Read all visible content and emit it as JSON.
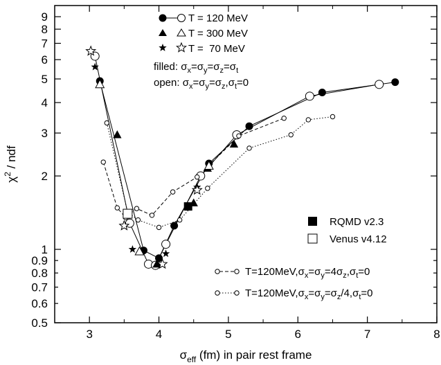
{
  "chart_data": {
    "type": "scatter",
    "xlabel": "σ_eff (fm) in pair rest frame",
    "xlabel_main": "σ",
    "xlabel_sub": "eff",
    "xlabel_rest": " (fm) in pair rest frame",
    "ylabel": "χ² / ndf",
    "ylabel_main": "χ",
    "ylabel_sup": "2",
    "ylabel_rest": " / ndf",
    "xlim": [
      2.5,
      8
    ],
    "ylim": [
      0.5,
      10
    ],
    "y_scale": "log",
    "grid": false,
    "x_ticks": [
      "3",
      "4",
      "5",
      "6",
      "7",
      "8"
    ],
    "y_ticks": [
      "0.5",
      "0.6",
      "0.7",
      "0.8",
      "0.9",
      "1",
      "2",
      "3",
      "4",
      "5",
      "6",
      "7",
      "8",
      "9"
    ],
    "legend_top": {
      "entries": [
        "T = 120 MeV",
        "T = 300 MeV",
        "T =  70 MeV"
      ],
      "filled_prefix": "filled:",
      "filled_formula": "σx=σy=σz=σt",
      "open_prefix": "open:",
      "open_formula": "σx=σy=σz,σt=0"
    },
    "legend_right": {
      "rqmd": "RQMD v2.3",
      "venus": "Venus v4.12"
    },
    "legend_bottom": {
      "dashed": "T=120MeV,σx=σy=4σz,σt=0",
      "dotted": "T=120MeV,σx=σy=σz/4,σt=0"
    },
    "series": [
      {
        "name": "T = 120 MeV, filled",
        "marker": "filled-circle",
        "line": "solid",
        "points": [
          [
            3.15,
            4.9
          ],
          [
            3.78,
            0.99
          ],
          [
            4.0,
            0.92
          ],
          [
            4.22,
            1.25
          ],
          [
            4.72,
            2.25
          ],
          [
            5.3,
            3.2
          ],
          [
            6.35,
            4.4
          ],
          [
            7.4,
            4.85
          ]
        ]
      },
      {
        "name": "T = 120 MeV, open",
        "marker": "open-circle",
        "line": "solid",
        "points": [
          [
            3.08,
            6.2
          ],
          [
            3.58,
            1.28
          ],
          [
            3.85,
            0.87
          ],
          [
            3.95,
            0.86
          ],
          [
            4.1,
            1.05
          ],
          [
            4.6,
            2.0
          ],
          [
            5.12,
            2.95
          ],
          [
            6.17,
            4.25
          ],
          [
            7.17,
            4.75
          ]
        ]
      },
      {
        "name": "T = 300 MeV, filled",
        "marker": "filled-triangle",
        "line": "none",
        "points": [
          [
            3.4,
            2.95
          ],
          [
            3.97,
            0.87
          ],
          [
            4.5,
            1.55
          ],
          [
            4.7,
            2.15
          ],
          [
            5.08,
            2.7
          ]
        ]
      },
      {
        "name": "T = 300 MeV, open",
        "marker": "open-triangle",
        "line": "none",
        "points": [
          [
            3.15,
            4.75
          ],
          [
            3.72,
            0.98
          ],
          [
            4.72,
            2.2
          ]
        ]
      },
      {
        "name": "T = 70 MeV, filled",
        "marker": "filled-star",
        "line": "none",
        "points": [
          [
            3.08,
            5.6
          ],
          [
            3.62,
            1.0
          ],
          [
            4.1,
            0.96
          ],
          [
            4.55,
            1.8
          ]
        ]
      },
      {
        "name": "T = 70 MeV, open",
        "marker": "open-star",
        "line": "none",
        "points": [
          [
            3.02,
            6.5
          ],
          [
            3.5,
            1.25
          ],
          [
            4.05,
            0.87
          ],
          [
            4.55,
            1.75
          ]
        ]
      },
      {
        "name": "T=120MeV,σx=σy=4σz,σt=0",
        "marker": "small-open-circle",
        "line": "dashed",
        "points": [
          [
            3.2,
            2.28
          ],
          [
            3.4,
            1.48
          ],
          [
            3.52,
            1.35
          ],
          [
            3.68,
            1.47
          ],
          [
            3.9,
            1.38
          ],
          [
            4.2,
            1.72
          ],
          [
            4.55,
            1.98
          ],
          [
            5.15,
            2.92
          ],
          [
            5.8,
            3.45
          ]
        ]
      },
      {
        "name": "T=120MeV,σx=σy=σz/4,σt=0",
        "marker": "small-open-circle",
        "line": "dotted",
        "points": [
          [
            3.25,
            3.3
          ],
          [
            3.55,
            1.42
          ],
          [
            3.7,
            1.32
          ],
          [
            4.0,
            1.23
          ],
          [
            4.3,
            1.32
          ],
          [
            4.7,
            1.78
          ],
          [
            5.3,
            2.6
          ],
          [
            5.9,
            2.95
          ],
          [
            6.15,
            3.4
          ],
          [
            6.5,
            3.5
          ]
        ]
      },
      {
        "name": "RQMD v2.3",
        "marker": "filled-square",
        "line": "none",
        "points": [
          [
            4.42,
            1.5
          ]
        ]
      },
      {
        "name": "Venus v4.12",
        "marker": "open-square",
        "line": "none",
        "points": [
          [
            3.55,
            1.4
          ]
        ]
      }
    ]
  }
}
